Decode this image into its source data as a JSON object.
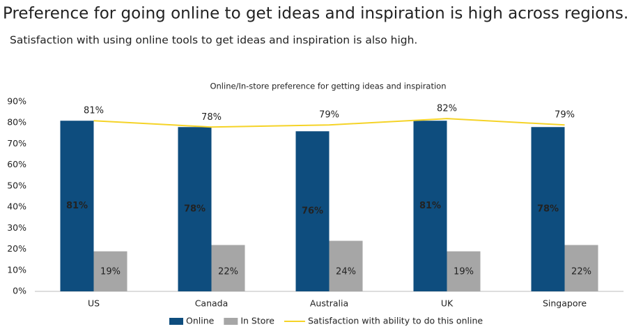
{
  "chart_data": {
    "type": "bar",
    "title": "Preference for going online to get ideas and inspiration is high across regions.",
    "subtitle": "Satisfaction with using online tools to get ideas and inspiration is also high.",
    "chart_title": "Online/In-store preference for getting ideas and inspiration",
    "categories": [
      "US",
      "Canada",
      "Australia",
      "UK",
      "Singapore"
    ],
    "series": [
      {
        "name": "Online",
        "color": "#0e4d7e",
        "values": [
          81,
          78,
          76,
          81,
          78
        ],
        "value_labels": [
          "81%",
          "78%",
          "76%",
          "81%",
          "78%"
        ]
      },
      {
        "name": "In Store",
        "color": "#a6a6a6",
        "values": [
          19,
          22,
          24,
          19,
          22
        ],
        "value_labels": [
          "19%",
          "22%",
          "24%",
          "19%",
          "22%"
        ]
      },
      {
        "name": "Satisfaction with ability to do this online",
        "type": "line",
        "color": "#f5d327",
        "values": [
          81,
          78,
          79,
          82,
          79
        ],
        "value_labels": [
          "81%",
          "78%",
          "79%",
          "82%",
          "79%"
        ]
      }
    ],
    "ylim": [
      0,
      90
    ],
    "yticks": [
      {
        "value": 0,
        "label": "0%"
      },
      {
        "value": 10,
        "label": "10%"
      },
      {
        "value": 20,
        "label": "20%"
      },
      {
        "value": 30,
        "label": "30%"
      },
      {
        "value": 40,
        "label": "40%"
      },
      {
        "value": 50,
        "label": "50%"
      },
      {
        "value": 60,
        "label": "60%"
      },
      {
        "value": 70,
        "label": "70%"
      },
      {
        "value": 80,
        "label": "80%"
      },
      {
        "value": 90,
        "label": "90%"
      }
    ]
  }
}
